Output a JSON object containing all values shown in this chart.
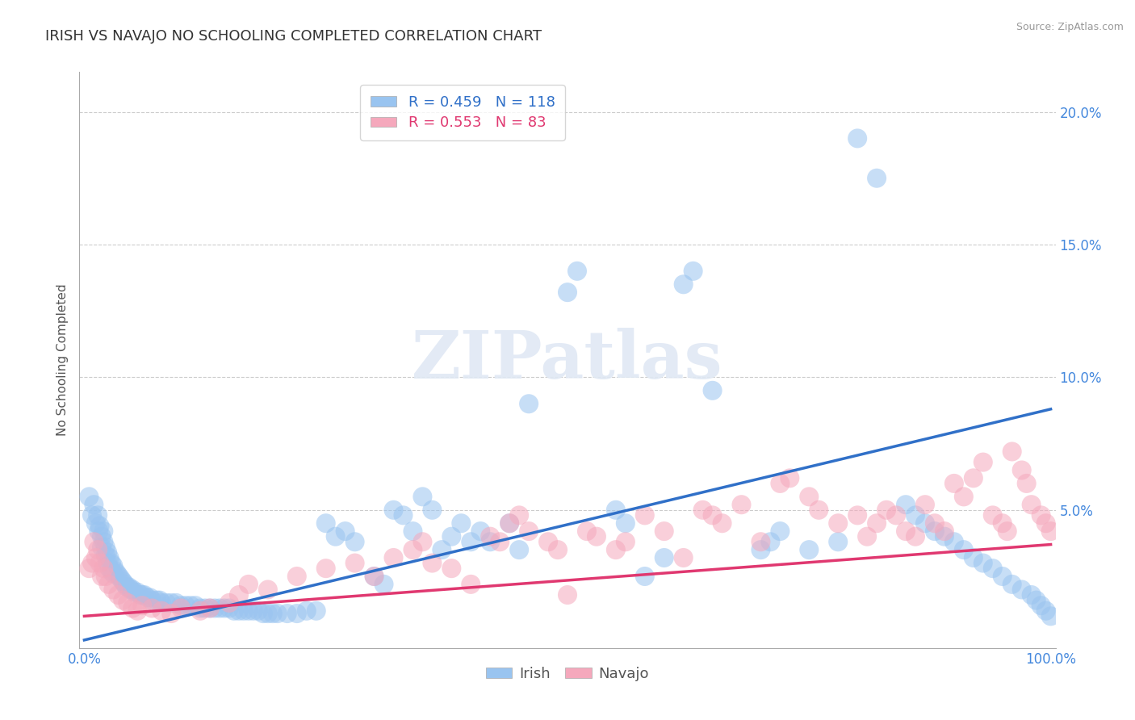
{
  "title": "IRISH VS NAVAJO NO SCHOOLING COMPLETED CORRELATION CHART",
  "source": "Source: ZipAtlas.com",
  "ylabel": "No Schooling Completed",
  "xlim": [
    -0.005,
    1.005
  ],
  "ylim": [
    -0.002,
    0.215
  ],
  "xtick_positions": [
    0.0,
    1.0
  ],
  "xticklabels": [
    "0.0%",
    "100.0%"
  ],
  "ytick_positions": [
    0.05,
    0.1,
    0.15,
    0.2
  ],
  "yticklabels_right": [
    "5.0%",
    "10.0%",
    "15.0%",
    "20.0%"
  ],
  "irish_color": "#99C4F0",
  "navajo_color": "#F5A8BC",
  "irish_line_color": "#3070C8",
  "navajo_line_color": "#E03870",
  "irish_R": 0.459,
  "irish_N": 118,
  "navajo_R": 0.553,
  "navajo_N": 83,
  "watermark": "ZIPatlas",
  "irish_scatter": [
    [
      0.005,
      0.055
    ],
    [
      0.008,
      0.048
    ],
    [
      0.01,
      0.052
    ],
    [
      0.012,
      0.045
    ],
    [
      0.014,
      0.048
    ],
    [
      0.015,
      0.042
    ],
    [
      0.016,
      0.044
    ],
    [
      0.018,
      0.04
    ],
    [
      0.018,
      0.036
    ],
    [
      0.02,
      0.042
    ],
    [
      0.02,
      0.038
    ],
    [
      0.022,
      0.036
    ],
    [
      0.022,
      0.033
    ],
    [
      0.024,
      0.034
    ],
    [
      0.024,
      0.03
    ],
    [
      0.026,
      0.032
    ],
    [
      0.026,
      0.028
    ],
    [
      0.028,
      0.03
    ],
    [
      0.028,
      0.027
    ],
    [
      0.03,
      0.029
    ],
    [
      0.03,
      0.026
    ],
    [
      0.032,
      0.027
    ],
    [
      0.034,
      0.026
    ],
    [
      0.036,
      0.025
    ],
    [
      0.038,
      0.024
    ],
    [
      0.04,
      0.023
    ],
    [
      0.042,
      0.022
    ],
    [
      0.044,
      0.021
    ],
    [
      0.046,
      0.021
    ],
    [
      0.048,
      0.02
    ],
    [
      0.05,
      0.02
    ],
    [
      0.052,
      0.019
    ],
    [
      0.055,
      0.019
    ],
    [
      0.058,
      0.018
    ],
    [
      0.06,
      0.018
    ],
    [
      0.062,
      0.018
    ],
    [
      0.065,
      0.017
    ],
    [
      0.068,
      0.017
    ],
    [
      0.07,
      0.016
    ],
    [
      0.075,
      0.016
    ],
    [
      0.078,
      0.016
    ],
    [
      0.08,
      0.015
    ],
    [
      0.085,
      0.015
    ],
    [
      0.09,
      0.015
    ],
    [
      0.095,
      0.015
    ],
    [
      0.1,
      0.014
    ],
    [
      0.105,
      0.014
    ],
    [
      0.11,
      0.014
    ],
    [
      0.115,
      0.014
    ],
    [
      0.12,
      0.013
    ],
    [
      0.125,
      0.013
    ],
    [
      0.13,
      0.013
    ],
    [
      0.135,
      0.013
    ],
    [
      0.14,
      0.013
    ],
    [
      0.145,
      0.013
    ],
    [
      0.15,
      0.013
    ],
    [
      0.155,
      0.012
    ],
    [
      0.16,
      0.012
    ],
    [
      0.165,
      0.012
    ],
    [
      0.17,
      0.012
    ],
    [
      0.175,
      0.012
    ],
    [
      0.18,
      0.012
    ],
    [
      0.185,
      0.011
    ],
    [
      0.19,
      0.011
    ],
    [
      0.195,
      0.011
    ],
    [
      0.2,
      0.011
    ],
    [
      0.21,
      0.011
    ],
    [
      0.22,
      0.011
    ],
    [
      0.23,
      0.012
    ],
    [
      0.24,
      0.012
    ],
    [
      0.25,
      0.045
    ],
    [
      0.26,
      0.04
    ],
    [
      0.27,
      0.042
    ],
    [
      0.28,
      0.038
    ],
    [
      0.3,
      0.025
    ],
    [
      0.31,
      0.022
    ],
    [
      0.32,
      0.05
    ],
    [
      0.33,
      0.048
    ],
    [
      0.34,
      0.042
    ],
    [
      0.35,
      0.055
    ],
    [
      0.36,
      0.05
    ],
    [
      0.37,
      0.035
    ],
    [
      0.38,
      0.04
    ],
    [
      0.39,
      0.045
    ],
    [
      0.4,
      0.038
    ],
    [
      0.41,
      0.042
    ],
    [
      0.42,
      0.038
    ],
    [
      0.44,
      0.045
    ],
    [
      0.45,
      0.035
    ],
    [
      0.46,
      0.09
    ],
    [
      0.5,
      0.132
    ],
    [
      0.51,
      0.14
    ],
    [
      0.55,
      0.05
    ],
    [
      0.56,
      0.045
    ],
    [
      0.58,
      0.025
    ],
    [
      0.6,
      0.032
    ],
    [
      0.62,
      0.135
    ],
    [
      0.63,
      0.14
    ],
    [
      0.65,
      0.095
    ],
    [
      0.7,
      0.035
    ],
    [
      0.71,
      0.038
    ],
    [
      0.72,
      0.042
    ],
    [
      0.75,
      0.035
    ],
    [
      0.78,
      0.038
    ],
    [
      0.8,
      0.19
    ],
    [
      0.82,
      0.175
    ],
    [
      0.85,
      0.052
    ],
    [
      0.86,
      0.048
    ],
    [
      0.87,
      0.045
    ],
    [
      0.88,
      0.042
    ],
    [
      0.89,
      0.04
    ],
    [
      0.9,
      0.038
    ],
    [
      0.91,
      0.035
    ],
    [
      0.92,
      0.032
    ],
    [
      0.93,
      0.03
    ],
    [
      0.94,
      0.028
    ],
    [
      0.95,
      0.025
    ],
    [
      0.96,
      0.022
    ],
    [
      0.97,
      0.02
    ],
    [
      0.98,
      0.018
    ],
    [
      0.985,
      0.016
    ],
    [
      0.99,
      0.014
    ],
    [
      0.995,
      0.012
    ],
    [
      1.0,
      0.01
    ]
  ],
  "navajo_scatter": [
    [
      0.005,
      0.028
    ],
    [
      0.008,
      0.03
    ],
    [
      0.01,
      0.038
    ],
    [
      0.012,
      0.032
    ],
    [
      0.014,
      0.035
    ],
    [
      0.016,
      0.03
    ],
    [
      0.018,
      0.025
    ],
    [
      0.02,
      0.028
    ],
    [
      0.022,
      0.025
    ],
    [
      0.025,
      0.022
    ],
    [
      0.03,
      0.02
    ],
    [
      0.035,
      0.018
    ],
    [
      0.04,
      0.016
    ],
    [
      0.045,
      0.015
    ],
    [
      0.05,
      0.013
    ],
    [
      0.055,
      0.012
    ],
    [
      0.06,
      0.014
    ],
    [
      0.07,
      0.013
    ],
    [
      0.08,
      0.012
    ],
    [
      0.09,
      0.011
    ],
    [
      0.1,
      0.013
    ],
    [
      0.12,
      0.012
    ],
    [
      0.13,
      0.013
    ],
    [
      0.15,
      0.015
    ],
    [
      0.16,
      0.018
    ],
    [
      0.17,
      0.022
    ],
    [
      0.19,
      0.02
    ],
    [
      0.22,
      0.025
    ],
    [
      0.25,
      0.028
    ],
    [
      0.28,
      0.03
    ],
    [
      0.3,
      0.025
    ],
    [
      0.32,
      0.032
    ],
    [
      0.34,
      0.035
    ],
    [
      0.35,
      0.038
    ],
    [
      0.36,
      0.03
    ],
    [
      0.38,
      0.028
    ],
    [
      0.4,
      0.022
    ],
    [
      0.42,
      0.04
    ],
    [
      0.43,
      0.038
    ],
    [
      0.44,
      0.045
    ],
    [
      0.45,
      0.048
    ],
    [
      0.46,
      0.042
    ],
    [
      0.48,
      0.038
    ],
    [
      0.49,
      0.035
    ],
    [
      0.5,
      0.018
    ],
    [
      0.52,
      0.042
    ],
    [
      0.53,
      0.04
    ],
    [
      0.55,
      0.035
    ],
    [
      0.56,
      0.038
    ],
    [
      0.58,
      0.048
    ],
    [
      0.6,
      0.042
    ],
    [
      0.62,
      0.032
    ],
    [
      0.64,
      0.05
    ],
    [
      0.65,
      0.048
    ],
    [
      0.66,
      0.045
    ],
    [
      0.68,
      0.052
    ],
    [
      0.7,
      0.038
    ],
    [
      0.72,
      0.06
    ],
    [
      0.73,
      0.062
    ],
    [
      0.75,
      0.055
    ],
    [
      0.76,
      0.05
    ],
    [
      0.78,
      0.045
    ],
    [
      0.8,
      0.048
    ],
    [
      0.81,
      0.04
    ],
    [
      0.82,
      0.045
    ],
    [
      0.83,
      0.05
    ],
    [
      0.84,
      0.048
    ],
    [
      0.85,
      0.042
    ],
    [
      0.86,
      0.04
    ],
    [
      0.87,
      0.052
    ],
    [
      0.88,
      0.045
    ],
    [
      0.89,
      0.042
    ],
    [
      0.9,
      0.06
    ],
    [
      0.91,
      0.055
    ],
    [
      0.92,
      0.062
    ],
    [
      0.93,
      0.068
    ],
    [
      0.94,
      0.048
    ],
    [
      0.95,
      0.045
    ],
    [
      0.955,
      0.042
    ],
    [
      0.96,
      0.072
    ],
    [
      0.97,
      0.065
    ],
    [
      0.975,
      0.06
    ],
    [
      0.98,
      0.052
    ],
    [
      0.99,
      0.048
    ],
    [
      0.995,
      0.045
    ],
    [
      1.0,
      0.042
    ]
  ],
  "irish_trendline": [
    [
      0.0,
      0.001
    ],
    [
      1.0,
      0.088
    ]
  ],
  "navajo_trendline": [
    [
      0.0,
      0.01
    ],
    [
      1.0,
      0.037
    ]
  ],
  "grid_color": "#CCCCCC",
  "background_color": "#FFFFFF",
  "title_fontsize": 13,
  "label_fontsize": 11,
  "tick_fontsize": 12,
  "tick_color": "#4488DD"
}
